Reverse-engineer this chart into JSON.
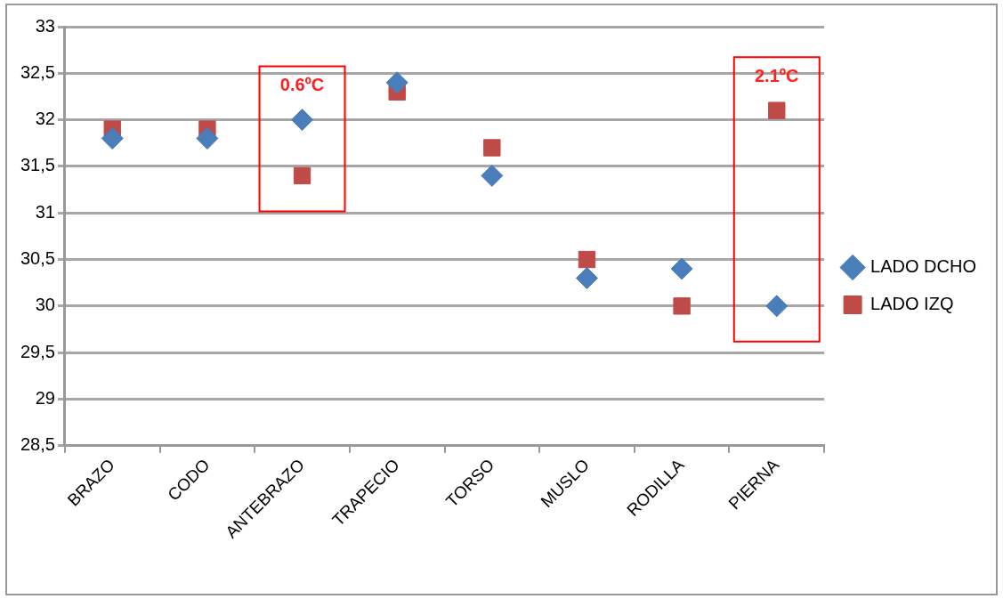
{
  "chart_data": {
    "type": "scatter",
    "categories": [
      "BRAZO",
      "CODO",
      "ANTEBRAZO",
      "TRAPECIO",
      "TORSO",
      "MUSLO",
      "RODILLA",
      "PIERNA"
    ],
    "series": [
      {
        "name": "LADO DCHO",
        "color": "#4a7ebb",
        "marker": "diamond",
        "values": [
          31.8,
          31.8,
          32.0,
          32.4,
          31.4,
          30.3,
          30.4,
          30.0
        ]
      },
      {
        "name": "LADO IZQ",
        "color": "#be4b48",
        "marker": "square",
        "values": [
          31.9,
          31.9,
          31.4,
          32.3,
          31.7,
          30.5,
          30.0,
          32.1
        ]
      }
    ],
    "ylim": [
      28.5,
      33
    ],
    "yticks": [
      {
        "value": 28.5,
        "label": "28,5"
      },
      29,
      {
        "value": 29.5,
        "label": "29,5"
      },
      30,
      {
        "value": 30.5,
        "label": "30,5"
      },
      31,
      {
        "value": 31.5,
        "label": "31,5"
      },
      32,
      {
        "value": 32.5,
        "label": "32,5"
      },
      33
    ],
    "grid": "y",
    "legend": "right",
    "annotations": [
      "0.6ºC",
      "2.1ºC"
    ]
  }
}
